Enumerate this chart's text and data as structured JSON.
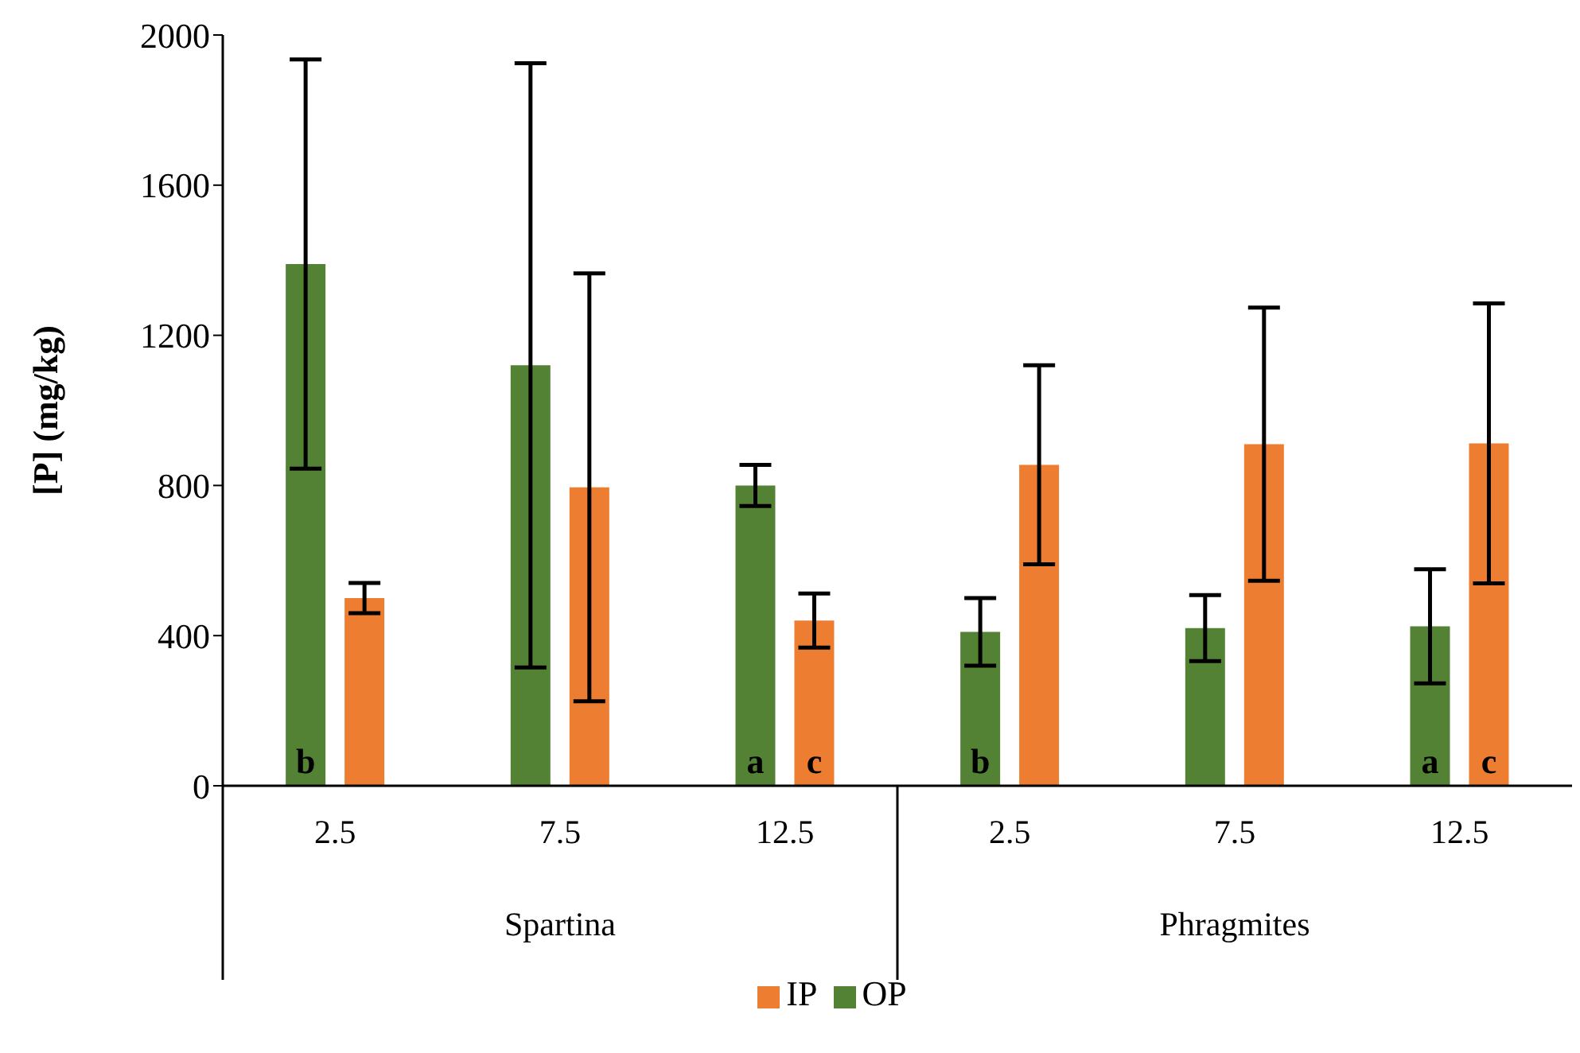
{
  "chart_data": {
    "type": "bar",
    "ylabel": "[P] (mg/kg)",
    "categories": [
      "2.5",
      "7.5",
      "12.5",
      "2.5",
      "7.5",
      "12.5"
    ],
    "series": [
      {
        "name": "OP",
        "color": "#548235",
        "values": [
          1390,
          1120,
          800,
          410,
          420,
          425
        ],
        "errors": [
          545,
          805,
          55,
          90,
          88,
          152
        ],
        "value_labels": [
          "b",
          null,
          "a",
          "b",
          null,
          "a"
        ]
      },
      {
        "name": "IP",
        "color": "#ed7d31",
        "values": [
          500,
          795,
          440,
          855,
          910,
          912
        ],
        "errors": [
          40,
          570,
          72,
          265,
          364,
          373
        ],
        "value_labels": [
          null,
          null,
          "c",
          null,
          null,
          "c"
        ]
      }
    ],
    "annotations": [
      "Spartina",
      "Phragmites"
    ],
    "ylim": [
      0,
      2000
    ],
    "yticks": [
      0,
      400,
      800,
      1200,
      1600,
      2000
    ],
    "grid": false,
    "legend": "bottom"
  }
}
